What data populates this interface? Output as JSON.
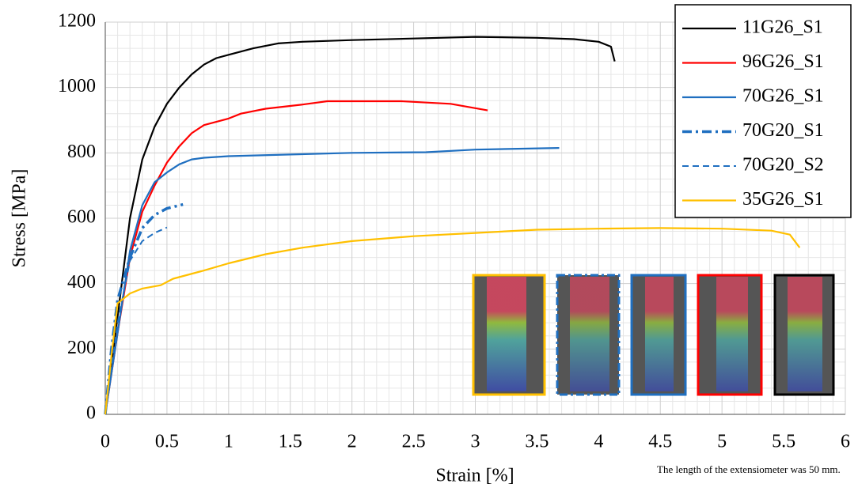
{
  "chart_data": {
    "type": "line",
    "xlabel": "Strain [%]",
    "ylabel": "Stress [MPa]",
    "annotation": "The length of the extensiometer was 50 mm.",
    "xlim": [
      0,
      6
    ],
    "xticks": [
      0,
      0.5,
      1,
      1.5,
      2,
      2.5,
      3,
      3.5,
      4,
      4.5,
      5,
      5.5,
      6
    ],
    "ylim": [
      0,
      1200
    ],
    "yticks": [
      0,
      200,
      400,
      600,
      800,
      1000,
      1200
    ],
    "grid": true,
    "legend": "top-right",
    "series": [
      {
        "name": "11G26_S1",
        "color": "#000000",
        "dash": "solid",
        "x": [
          0,
          0.1,
          0.2,
          0.3,
          0.4,
          0.5,
          0.6,
          0.7,
          0.8,
          0.9,
          1.0,
          1.2,
          1.4,
          1.6,
          2.0,
          2.5,
          3.0,
          3.5,
          3.8,
          4.0,
          4.1,
          4.13
        ],
        "values": [
          0,
          300,
          600,
          780,
          880,
          950,
          1000,
          1040,
          1070,
          1090,
          1100,
          1120,
          1135,
          1140,
          1145,
          1150,
          1155,
          1152,
          1148,
          1140,
          1125,
          1080
        ]
      },
      {
        "name": "96G26_S1",
        "color": "#ff0000",
        "dash": "solid",
        "x": [
          0,
          0.1,
          0.2,
          0.3,
          0.4,
          0.5,
          0.6,
          0.7,
          0.8,
          1.0,
          1.1,
          1.3,
          1.6,
          1.8,
          2.4,
          2.8,
          3.1
        ],
        "values": [
          0,
          250,
          480,
          620,
          700,
          770,
          820,
          860,
          885,
          905,
          920,
          935,
          948,
          958,
          958,
          950,
          930
        ]
      },
      {
        "name": "70G26_S1",
        "color": "#1f6fc0",
        "dash": "solid",
        "x": [
          0,
          0.1,
          0.2,
          0.3,
          0.4,
          0.5,
          0.6,
          0.7,
          0.8,
          1.0,
          1.5,
          2.0,
          2.6,
          3.0,
          3.68
        ],
        "values": [
          0,
          250,
          500,
          640,
          710,
          740,
          765,
          780,
          785,
          790,
          795,
          800,
          802,
          810,
          815
        ]
      },
      {
        "name": "70G20_S1",
        "color": "#1f6fc0",
        "dash": "dash-dot",
        "x": [
          0,
          0.05,
          0.1,
          0.2,
          0.3,
          0.4,
          0.5,
          0.63
        ],
        "values": [
          0,
          200,
          350,
          480,
          570,
          610,
          630,
          642
        ]
      },
      {
        "name": "70G20_S2",
        "color": "#1f6fc0",
        "dash": "dash",
        "x": [
          0,
          0.1,
          0.2,
          0.3,
          0.4,
          0.5
        ],
        "values": [
          0,
          280,
          470,
          530,
          555,
          572
        ]
      },
      {
        "name": "35G26_S1",
        "color": "#ffc000",
        "dash": "solid",
        "x": [
          0,
          0.05,
          0.1,
          0.2,
          0.3,
          0.45,
          0.55,
          0.8,
          1.0,
          1.3,
          1.6,
          2.0,
          2.5,
          3.0,
          3.5,
          4.0,
          4.5,
          5.0,
          5.4,
          5.55,
          5.63
        ],
        "values": [
          0,
          180,
          340,
          370,
          385,
          395,
          415,
          440,
          462,
          490,
          510,
          530,
          545,
          555,
          565,
          568,
          570,
          568,
          562,
          550,
          510
        ]
      }
    ]
  }
}
